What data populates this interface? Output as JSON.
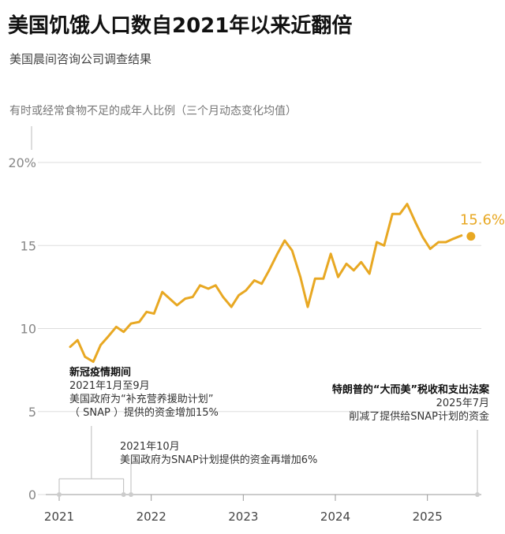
{
  "title": "美国饥饿人口数自2021年以来近翻倍",
  "subtitle": "美国晨间咨询公司调查结果",
  "ylabel": "有时或经常食物不足的成年人比例（三个月动态变化均值）",
  "colors": {
    "line": "#E8A823",
    "grid": "#dddddd",
    "axis": "#999999",
    "tick": "#888888",
    "guide": "#bbbbbb"
  },
  "annotations": {
    "covid": {
      "head": "新冠疫情期间",
      "line1": "2021年1月至9月",
      "line2": "美国政府为“补充营养援助计划”",
      "line3": "（ SNAP ）提供的资金增加15%"
    },
    "oct": {
      "line1": "2021年10月",
      "line2": "美国政府为SNAP计划提供的资金再增加6%"
    },
    "trump": {
      "head": "特朗普的“大而美”税收和支出法案",
      "line1": "2025年7月",
      "line2": "削减了提供给SNAP计划的资金"
    }
  },
  "chart_data": {
    "type": "line",
    "title": "美国饥饿人口数自2021年以来近翻倍",
    "subtitle": "美国晨间咨询公司调查结果",
    "ylabel": "有时或经常食物不足的成年人比例（三个月动态变化均值）",
    "xlabel": "",
    "xlim": [
      2021.0,
      2025.5
    ],
    "ylim": [
      0,
      20
    ],
    "ytick_labels": [
      "0",
      "5",
      "10",
      "15",
      "20%"
    ],
    "yticks": [
      0,
      5,
      10,
      15,
      20
    ],
    "xticks": [
      2021,
      2022,
      2023,
      2024,
      2025
    ],
    "xtick_labels": [
      "2021",
      "2022",
      "2023",
      "2024",
      "2025"
    ],
    "grid": true,
    "last_value_label": "15.6%",
    "x": [
      2021.12,
      2021.2,
      2021.28,
      2021.37,
      2021.45,
      2021.53,
      2021.62,
      2021.7,
      2021.78,
      2021.87,
      2021.95,
      2022.03,
      2022.12,
      2022.2,
      2022.28,
      2022.37,
      2022.45,
      2022.53,
      2022.62,
      2022.7,
      2022.78,
      2022.87,
      2022.95,
      2023.03,
      2023.12,
      2023.2,
      2023.28,
      2023.37,
      2023.45,
      2023.53,
      2023.62,
      2023.7,
      2023.78,
      2023.87,
      2023.95,
      2024.03,
      2024.12,
      2024.2,
      2024.28,
      2024.37,
      2024.45,
      2024.53,
      2024.62,
      2024.7,
      2024.78,
      2024.87,
      2024.95,
      2025.03,
      2025.12,
      2025.2,
      2025.28,
      2025.37
    ],
    "y": [
      8.9,
      9.3,
      8.3,
      8.0,
      9.0,
      9.5,
      10.1,
      9.8,
      10.3,
      10.4,
      11.0,
      10.9,
      12.2,
      11.8,
      11.4,
      11.8,
      11.9,
      12.6,
      12.4,
      12.6,
      11.9,
      11.3,
      12.0,
      12.3,
      12.9,
      12.7,
      13.5,
      14.5,
      15.3,
      14.7,
      13.1,
      11.3,
      13.0,
      13.0,
      14.5,
      13.1,
      13.9,
      13.5,
      14.0,
      13.3,
      15.2,
      15.0,
      16.9,
      16.9,
      17.5,
      16.4,
      15.5,
      14.8,
      15.2,
      15.2,
      15.4,
      15.6
    ],
    "series": [
      {
        "values_ref": "y"
      }
    ]
  }
}
